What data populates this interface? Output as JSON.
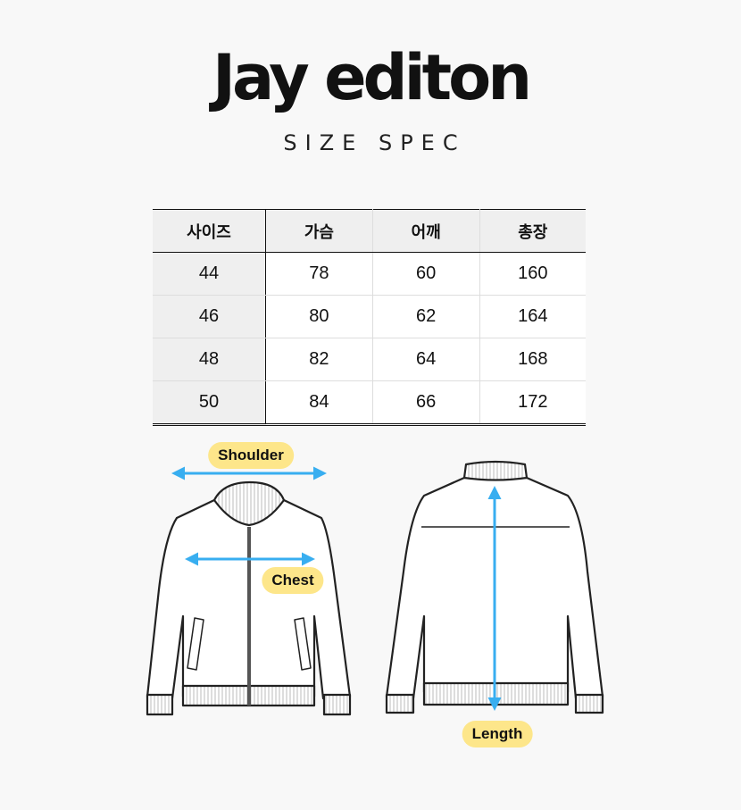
{
  "brand": {
    "title": "Jay editon",
    "subtitle": "SIZE SPEC"
  },
  "table": {
    "headers": [
      "사이즈",
      "가슴",
      "어깨",
      "총장"
    ],
    "rows": [
      [
        "44",
        "78",
        "60",
        "160"
      ],
      [
        "46",
        "80",
        "62",
        "164"
      ],
      [
        "48",
        "82",
        "64",
        "168"
      ],
      [
        "50",
        "84",
        "66",
        "172"
      ]
    ]
  },
  "diagram": {
    "shoulder_label": "Shoulder",
    "chest_label": "Chest",
    "length_label": "Length",
    "arrow_color": "#38aef0",
    "label_color": "#fde68a"
  }
}
